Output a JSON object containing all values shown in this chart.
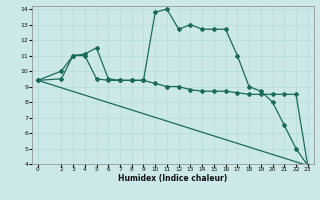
{
  "xlabel": "Humidex (Indice chaleur)",
  "xlim": [
    -0.5,
    23.5
  ],
  "ylim": [
    4,
    14.2
  ],
  "xticks": [
    0,
    2,
    3,
    4,
    5,
    6,
    7,
    8,
    9,
    10,
    11,
    12,
    13,
    14,
    15,
    16,
    17,
    18,
    19,
    20,
    21,
    22,
    23
  ],
  "yticks": [
    4,
    5,
    6,
    7,
    8,
    9,
    10,
    11,
    12,
    13,
    14
  ],
  "bg_color": "#cce8e8",
  "line_color": "#1a6b5a",
  "series1_x": [
    0,
    2,
    3,
    4,
    5,
    6,
    7,
    8,
    9,
    10,
    11,
    12,
    13,
    14,
    15,
    16,
    17,
    18,
    19,
    20,
    21,
    22,
    23
  ],
  "series1_y": [
    9.4,
    10.0,
    11.0,
    11.1,
    11.5,
    9.5,
    9.4,
    9.4,
    9.4,
    13.8,
    14.0,
    12.7,
    13.0,
    12.7,
    12.7,
    12.7,
    11.0,
    9.0,
    8.7,
    8.0,
    6.5,
    5.0,
    3.9
  ],
  "series2_x": [
    0,
    2,
    3,
    4,
    5,
    6,
    7,
    8,
    9,
    10,
    11,
    12,
    13,
    14,
    15,
    16,
    17,
    18,
    19,
    20,
    21,
    22,
    23
  ],
  "series2_y": [
    9.4,
    9.5,
    11.0,
    11.0,
    9.5,
    9.4,
    9.4,
    9.4,
    9.4,
    9.2,
    9.0,
    9.0,
    8.8,
    8.7,
    8.7,
    8.7,
    8.6,
    8.5,
    8.5,
    8.5,
    8.5,
    8.5,
    3.9
  ],
  "series3_x": [
    0,
    23
  ],
  "series3_y": [
    9.4,
    3.9
  ],
  "figwidth": 3.2,
  "figheight": 2.0,
  "dpi": 100
}
